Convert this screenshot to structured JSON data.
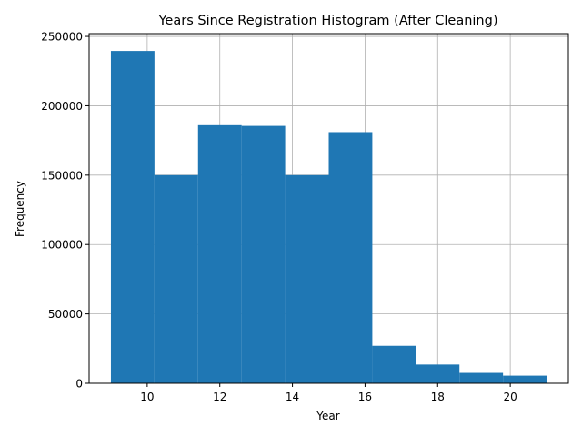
{
  "chart_data": {
    "type": "bar",
    "title": "Years Since Registration Histogram (After Cleaning)",
    "xlabel": "Year",
    "ylabel": "Frequency",
    "xlim": [
      8.4,
      21.6
    ],
    "ylim": [
      0,
      252000
    ],
    "x_ticks": [
      10,
      12,
      14,
      16,
      18,
      20
    ],
    "y_ticks": [
      0,
      50000,
      100000,
      150000,
      200000,
      250000
    ],
    "grid": true,
    "bar_color": "#1f77b4",
    "bins": [
      {
        "x0": 9.0,
        "x1": 10.2,
        "value": 239500
      },
      {
        "x0": 10.2,
        "x1": 11.4,
        "value": 150000
      },
      {
        "x0": 11.4,
        "x1": 12.6,
        "value": 186000
      },
      {
        "x0": 12.6,
        "x1": 13.8,
        "value": 185500
      },
      {
        "x0": 13.8,
        "x1": 15.0,
        "value": 150000
      },
      {
        "x0": 15.0,
        "x1": 16.2,
        "value": 181000
      },
      {
        "x0": 16.2,
        "x1": 17.4,
        "value": 27000
      },
      {
        "x0": 17.4,
        "x1": 18.6,
        "value": 13500
      },
      {
        "x0": 18.6,
        "x1": 19.8,
        "value": 7500
      },
      {
        "x0": 19.8,
        "x1": 21.0,
        "value": 5500
      }
    ]
  }
}
